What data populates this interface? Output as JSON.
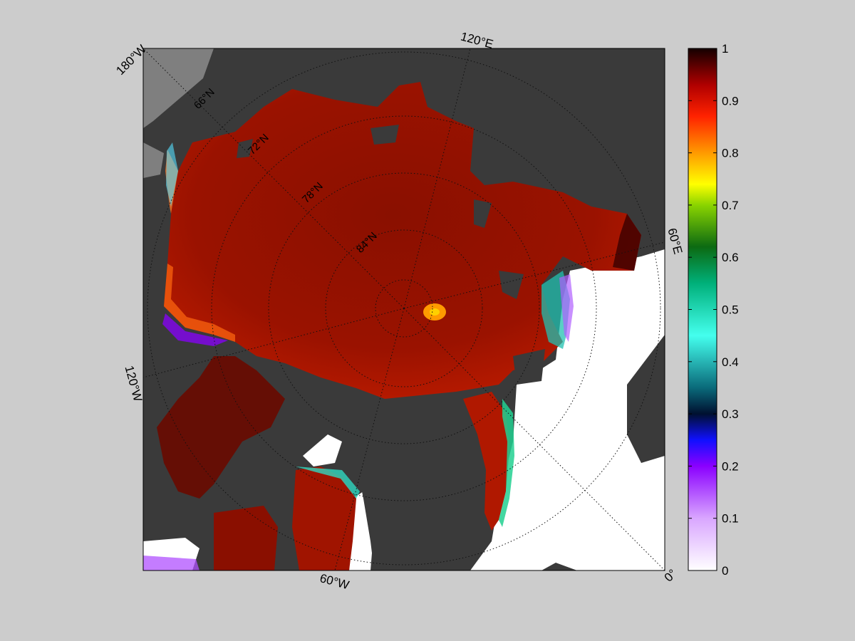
{
  "map": {
    "projection": "north-polar-stereographic",
    "variable_scale": "ice concentration fraction",
    "longitude_labels": [
      "180°W",
      "120°E",
      "60°E",
      "0°",
      "60°W",
      "120°W"
    ],
    "latitude_labels": [
      "66°N",
      "72°N",
      "78°N",
      "84°N"
    ],
    "colors": {
      "figure_bg": "#cccccc",
      "land": "#3a3a3a",
      "masked_land": "#7f7f7f",
      "open_water": "#ffffff",
      "sea_ice_dominant": "#8b0d00"
    }
  },
  "colorbar": {
    "min": 0,
    "max": 1,
    "ticks": [
      "0",
      "0.1",
      "0.2",
      "0.3",
      "0.4",
      "0.5",
      "0.6",
      "0.7",
      "0.8",
      "0.9",
      "1"
    ],
    "colormap_stops": [
      {
        "v": 0.0,
        "c": "#ffffff"
      },
      {
        "v": 0.1,
        "c": "#d9a6ff"
      },
      {
        "v": 0.2,
        "c": "#8a00ff"
      },
      {
        "v": 0.25,
        "c": "#1010ff"
      },
      {
        "v": 0.3,
        "c": "#001030"
      },
      {
        "v": 0.35,
        "c": "#0a6a7a"
      },
      {
        "v": 0.45,
        "c": "#44ffee"
      },
      {
        "v": 0.55,
        "c": "#00b07a"
      },
      {
        "v": 0.62,
        "c": "#0c6a12"
      },
      {
        "v": 0.7,
        "c": "#8ad400"
      },
      {
        "v": 0.74,
        "c": "#ffff00"
      },
      {
        "v": 0.8,
        "c": "#ff9a00"
      },
      {
        "v": 0.87,
        "c": "#ff2200"
      },
      {
        "v": 0.93,
        "c": "#b00000"
      },
      {
        "v": 1.0,
        "c": "#140000"
      }
    ]
  }
}
